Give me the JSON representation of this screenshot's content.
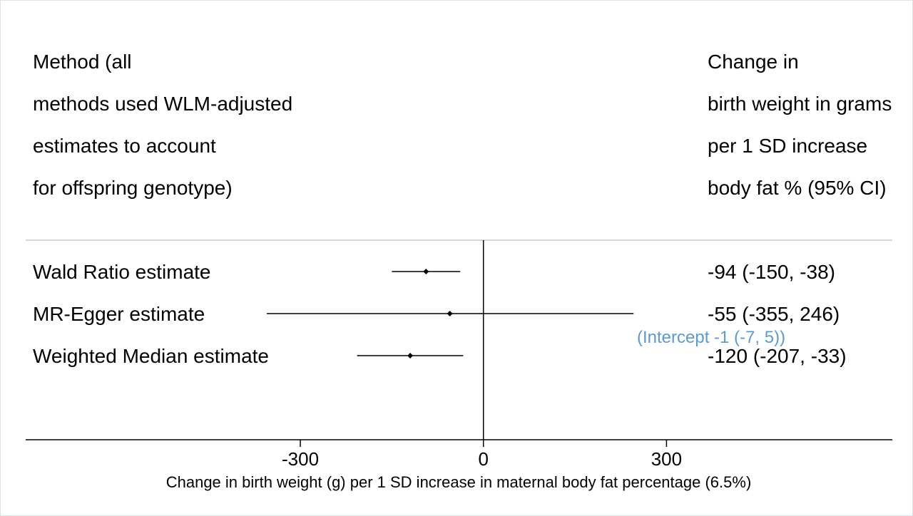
{
  "header": {
    "method_lines": [
      "Method (all",
      "methods used WLM-adjusted",
      "estimates to account",
      "for offspring genotype)"
    ],
    "effect_lines": [
      "Change in",
      "birth weight in grams",
      "per 1 SD increase",
      "body fat % (95% CI)"
    ]
  },
  "rows": [
    {
      "label": "Wald Ratio estimate",
      "value_text": "-94 (-150, -38)"
    },
    {
      "label": "MR-Egger estimate",
      "value_text": "-55 (-355, 246)"
    },
    {
      "label": "Weighted Median estimate",
      "value_text": "-120 (-207, -33)"
    }
  ],
  "intercept_note": "(Intercept -1 (-7, 5))",
  "colors": {
    "note": "#5b9bd5",
    "marker": "#000000"
  },
  "chart_data": {
    "type": "scatter",
    "orientation": "forest-plot",
    "xlabel": "Change in birth weight (g) per 1 SD increase in maternal body fat percentage (6.5%)",
    "xticks": [
      -300,
      0,
      300
    ],
    "xlim": [
      -750,
      670
    ],
    "reference_line": 0,
    "series": [
      {
        "categories": [
          "Wald Ratio estimate",
          "MR-Egger estimate",
          "Weighted Median estimate"
        ],
        "estimate": [
          -94,
          -55,
          -120
        ],
        "lower": [
          -150,
          -355,
          -207
        ],
        "upper": [
          -38,
          246,
          -33
        ]
      }
    ]
  }
}
